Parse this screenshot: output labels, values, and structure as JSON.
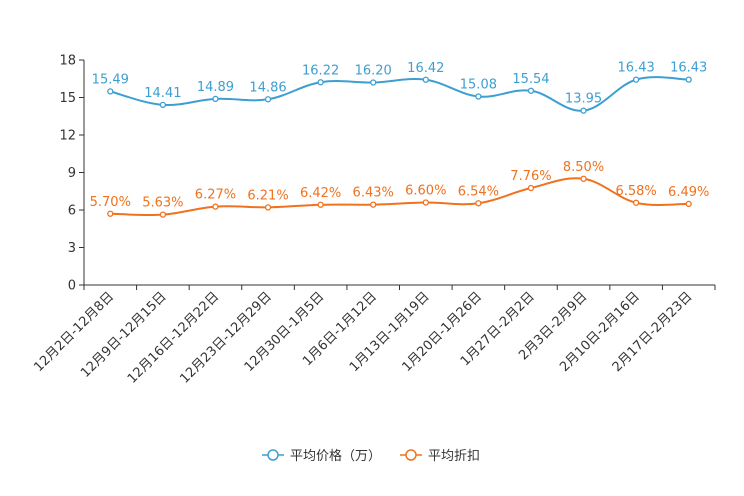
{
  "chart_data": {
    "type": "line",
    "title": "",
    "xlabel": "",
    "ylabel": "",
    "ylim": [
      0,
      18
    ],
    "yticks": [
      0,
      3,
      6,
      9,
      12,
      15,
      18
    ],
    "ytick_labels": [
      "0",
      "3",
      "6",
      "9",
      "12",
      "15",
      "18"
    ],
    "categories": [
      "12月2日-12月8日",
      "12月9日-12月15日",
      "12月16日-12月22日",
      "12月23日-12月29日",
      "12月30日-1月5日",
      "1月6日-1月12日",
      "1月13日-1月19日",
      "1月20日-1月26日",
      "1月27日-2月2日",
      "2月3日-2月9日",
      "2月10日-2月16日",
      "2月17日-2月23日"
    ],
    "series": [
      {
        "name": "平均价格（万）",
        "color": "#3d9fd1",
        "values": [
          15.49,
          14.41,
          14.89,
          14.86,
          16.22,
          16.2,
          16.42,
          15.08,
          15.54,
          13.95,
          16.43,
          16.43
        ],
        "labels": [
          "15.49",
          "14.41",
          "14.89",
          "14.86",
          "16.22",
          "16.20",
          "16.42",
          "15.08",
          "15.54",
          "13.95",
          "16.43",
          "16.43"
        ]
      },
      {
        "name": "平均折扣",
        "color": "#f0721e",
        "values": [
          5.7,
          5.63,
          6.27,
          6.21,
          6.42,
          6.43,
          6.6,
          6.54,
          7.76,
          8.5,
          6.58,
          6.49
        ],
        "labels": [
          "5.70%",
          "5.63%",
          "6.27%",
          "6.21%",
          "6.42%",
          "6.43%",
          "6.60%",
          "6.54%",
          "7.76%",
          "8.50%",
          "6.58%",
          "6.49%"
        ]
      }
    ],
    "legend_position": "bottom-center",
    "grid": false
  }
}
